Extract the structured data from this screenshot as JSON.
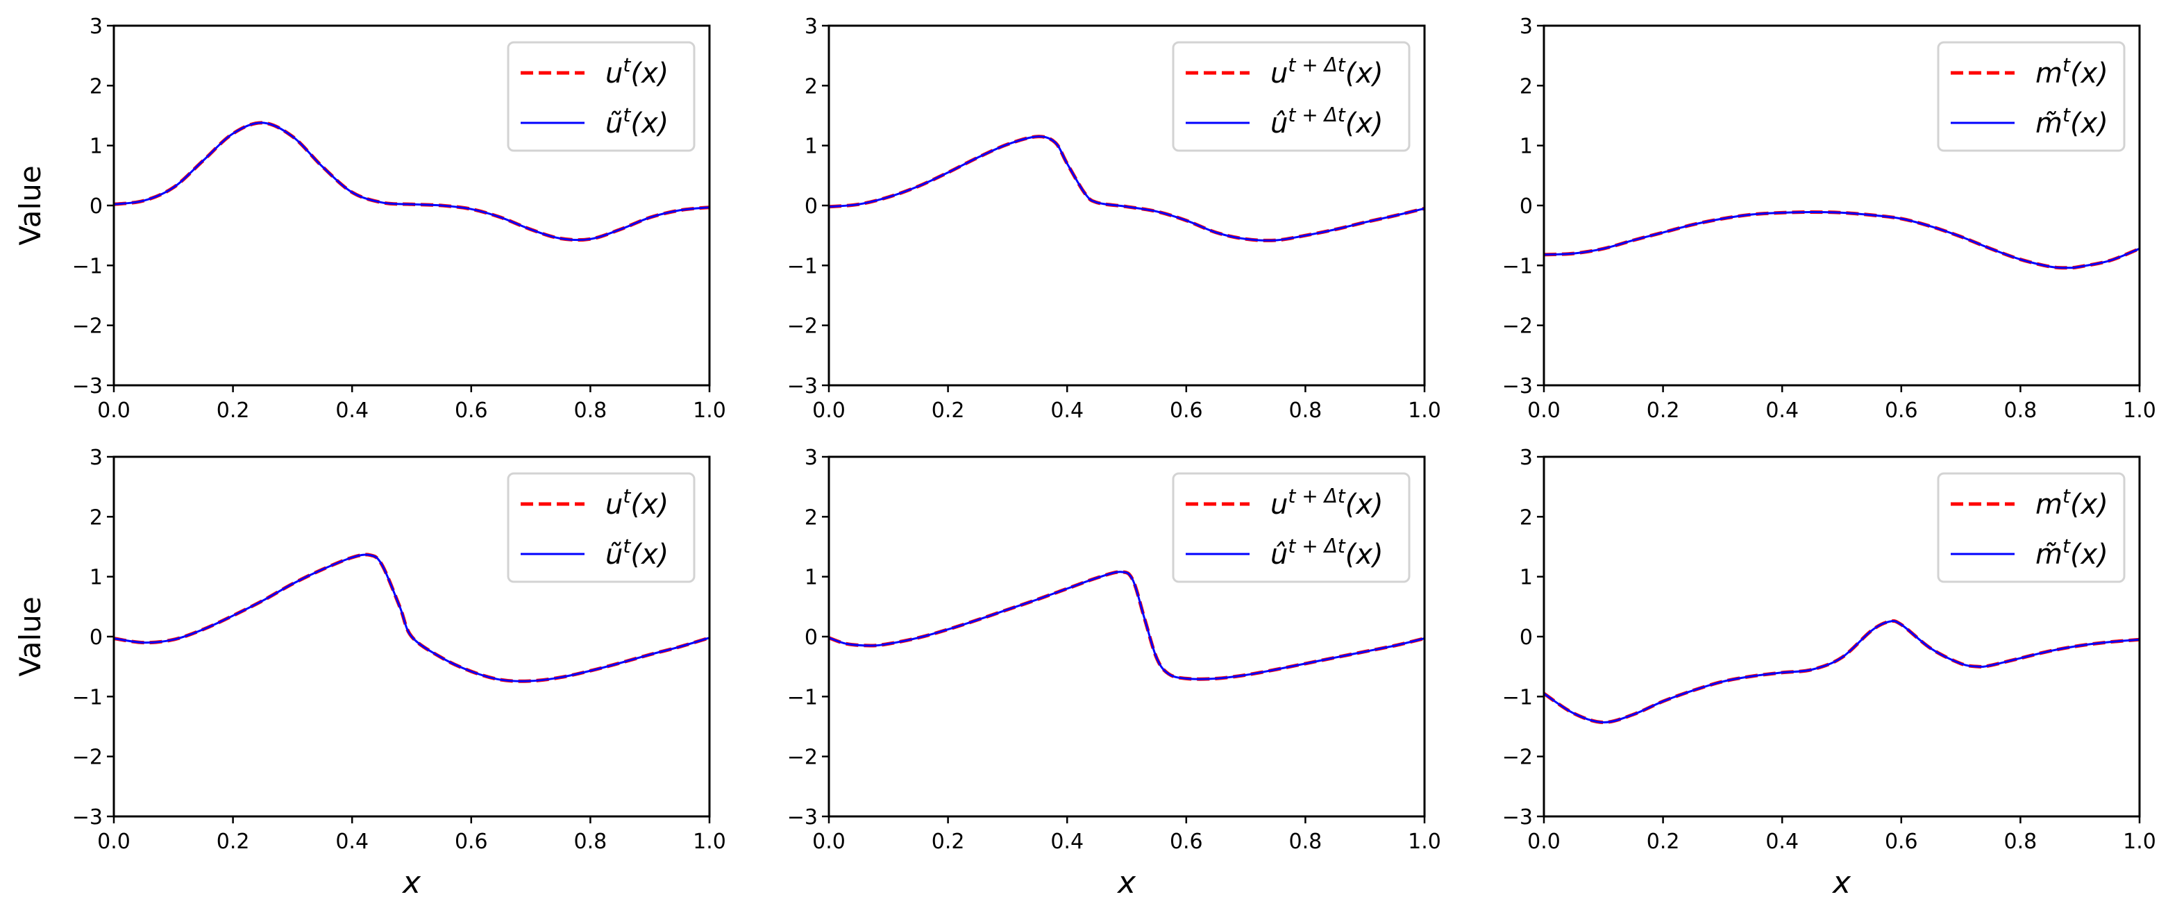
{
  "figure": {
    "layout": "2x3 grid of line plots",
    "ylabel": "Value",
    "xlabel": "x",
    "colors": {
      "reference": "#ff0000",
      "prediction": "#0000ff",
      "axis": "#000000",
      "legend_border": "#d3d3d3"
    }
  },
  "chart_data": [
    {
      "type": "line",
      "row": 0,
      "col": 0,
      "title": "",
      "xlabel": "",
      "ylabel": "Value",
      "xlim": [
        0.0,
        1.0
      ],
      "ylim": [
        -3,
        3
      ],
      "xticks": [
        "0.0",
        "0.2",
        "0.4",
        "0.6",
        "0.8",
        "1.0"
      ],
      "yticks": [
        "3",
        "2",
        "1",
        "0",
        "−1",
        "−2",
        "−3"
      ],
      "legend_position": "upper right",
      "x": [
        0.0,
        0.05,
        0.1,
        0.15,
        0.2,
        0.25,
        0.3,
        0.35,
        0.4,
        0.45,
        0.5,
        0.55,
        0.6,
        0.65,
        0.7,
        0.75,
        0.8,
        0.85,
        0.9,
        0.95,
        1.0
      ],
      "series": [
        {
          "name": "u^t(x)",
          "label_main": "u",
          "label_sup": "t",
          "accent": "",
          "style": "dashed",
          "color": "#ff0000",
          "values": [
            0.02,
            0.08,
            0.3,
            0.75,
            1.2,
            1.38,
            1.15,
            0.65,
            0.22,
            0.05,
            0.02,
            0.0,
            -0.06,
            -0.2,
            -0.4,
            -0.55,
            -0.56,
            -0.4,
            -0.2,
            -0.08,
            -0.03
          ]
        },
        {
          "name": "ũ^t(x)",
          "label_main": "u",
          "label_sup": "t",
          "accent": "tilde",
          "style": "solid",
          "color": "#0000ff",
          "values": [
            0.02,
            0.08,
            0.3,
            0.75,
            1.2,
            1.38,
            1.15,
            0.65,
            0.22,
            0.05,
            0.02,
            0.0,
            -0.06,
            -0.2,
            -0.4,
            -0.55,
            -0.56,
            -0.4,
            -0.2,
            -0.08,
            -0.03
          ]
        }
      ]
    },
    {
      "type": "line",
      "row": 0,
      "col": 1,
      "title": "",
      "xlabel": "",
      "ylabel": "",
      "xlim": [
        0.0,
        1.0
      ],
      "ylim": [
        -3,
        3
      ],
      "xticks": [
        "0.0",
        "0.2",
        "0.4",
        "0.6",
        "0.8",
        "1.0"
      ],
      "yticks": [
        "3",
        "2",
        "1",
        "0",
        "−1",
        "−2",
        "−3"
      ],
      "legend_position": "upper right",
      "x": [
        0.0,
        0.05,
        0.1,
        0.15,
        0.2,
        0.25,
        0.3,
        0.35,
        0.38,
        0.4,
        0.43,
        0.45,
        0.5,
        0.55,
        0.6,
        0.65,
        0.7,
        0.75,
        0.8,
        0.85,
        0.9,
        0.95,
        1.0
      ],
      "series": [
        {
          "name": "u^{t+Δt}(x)",
          "label_main": "u",
          "label_sup": "t + Δt",
          "accent": "",
          "style": "dashed",
          "color": "#ff0000",
          "values": [
            -0.02,
            0.02,
            0.14,
            0.32,
            0.55,
            0.8,
            1.02,
            1.15,
            1.05,
            0.7,
            0.2,
            0.05,
            -0.02,
            -0.1,
            -0.25,
            -0.45,
            -0.56,
            -0.58,
            -0.5,
            -0.4,
            -0.28,
            -0.17,
            -0.05
          ]
        },
        {
          "name": "û^{t+Δt}(x)",
          "label_main": "u",
          "label_sup": "t + Δt",
          "accent": "hat",
          "style": "solid",
          "color": "#0000ff",
          "values": [
            -0.02,
            0.02,
            0.14,
            0.32,
            0.55,
            0.8,
            1.02,
            1.15,
            1.05,
            0.7,
            0.2,
            0.05,
            -0.02,
            -0.1,
            -0.25,
            -0.45,
            -0.56,
            -0.58,
            -0.5,
            -0.4,
            -0.28,
            -0.17,
            -0.05
          ]
        }
      ]
    },
    {
      "type": "line",
      "row": 0,
      "col": 2,
      "title": "",
      "xlabel": "",
      "ylabel": "",
      "xlim": [
        0.0,
        1.0
      ],
      "ylim": [
        -3,
        3
      ],
      "xticks": [
        "0.0",
        "0.2",
        "0.4",
        "0.6",
        "0.8",
        "1.0"
      ],
      "yticks": [
        "3",
        "2",
        "1",
        "0",
        "−1",
        "−2",
        "−3"
      ],
      "legend_position": "upper right",
      "x": [
        0.0,
        0.05,
        0.1,
        0.15,
        0.2,
        0.25,
        0.3,
        0.35,
        0.4,
        0.45,
        0.5,
        0.55,
        0.6,
        0.65,
        0.7,
        0.75,
        0.8,
        0.85,
        0.88,
        0.9,
        0.95,
        1.0
      ],
      "series": [
        {
          "name": "m^t(x)",
          "label_main": "m",
          "label_sup": "t",
          "accent": "",
          "style": "dashed",
          "color": "#ff0000",
          "values": [
            -0.82,
            -0.8,
            -0.72,
            -0.58,
            -0.45,
            -0.32,
            -0.22,
            -0.15,
            -0.12,
            -0.11,
            -0.12,
            -0.16,
            -0.22,
            -0.35,
            -0.52,
            -0.72,
            -0.9,
            -1.02,
            -1.04,
            -1.02,
            -0.92,
            -0.72
          ]
        },
        {
          "name": "m̃^t(x)",
          "label_main": "m",
          "label_sup": "t",
          "accent": "tilde",
          "style": "solid",
          "color": "#0000ff",
          "values": [
            -0.82,
            -0.8,
            -0.72,
            -0.58,
            -0.45,
            -0.32,
            -0.22,
            -0.15,
            -0.12,
            -0.11,
            -0.12,
            -0.16,
            -0.22,
            -0.35,
            -0.52,
            -0.72,
            -0.9,
            -1.02,
            -1.04,
            -1.02,
            -0.92,
            -0.72
          ]
        }
      ]
    },
    {
      "type": "line",
      "row": 1,
      "col": 0,
      "title": "",
      "xlabel": "x",
      "ylabel": "Value",
      "xlim": [
        0.0,
        1.0
      ],
      "ylim": [
        -3,
        3
      ],
      "xticks": [
        "0.0",
        "0.2",
        "0.4",
        "0.6",
        "0.8",
        "1.0"
      ],
      "yticks": [
        "3",
        "2",
        "1",
        "0",
        "−1",
        "−2",
        "−3"
      ],
      "legend_position": "upper right",
      "x": [
        0.0,
        0.05,
        0.1,
        0.15,
        0.2,
        0.25,
        0.3,
        0.35,
        0.4,
        0.43,
        0.45,
        0.48,
        0.5,
        0.55,
        0.6,
        0.65,
        0.7,
        0.75,
        0.8,
        0.85,
        0.9,
        0.95,
        1.0
      ],
      "series": [
        {
          "name": "u^t(x)",
          "label_main": "u",
          "label_sup": "t",
          "accent": "",
          "style": "dashed",
          "color": "#ff0000",
          "values": [
            -0.03,
            -0.1,
            -0.05,
            0.12,
            0.35,
            0.6,
            0.88,
            1.12,
            1.32,
            1.36,
            1.2,
            0.5,
            0.0,
            -0.35,
            -0.58,
            -0.72,
            -0.74,
            -0.68,
            -0.57,
            -0.44,
            -0.3,
            -0.17,
            -0.02
          ]
        },
        {
          "name": "ũ^t(x)",
          "label_main": "u",
          "label_sup": "t",
          "accent": "tilde",
          "style": "solid",
          "color": "#0000ff",
          "values": [
            -0.03,
            -0.1,
            -0.05,
            0.12,
            0.35,
            0.6,
            0.88,
            1.12,
            1.32,
            1.36,
            1.2,
            0.5,
            0.0,
            -0.35,
            -0.58,
            -0.72,
            -0.74,
            -0.68,
            -0.57,
            -0.44,
            -0.3,
            -0.17,
            -0.02
          ]
        }
      ]
    },
    {
      "type": "line",
      "row": 1,
      "col": 1,
      "title": "",
      "xlabel": "x",
      "ylabel": "",
      "xlim": [
        0.0,
        1.0
      ],
      "ylim": [
        -3,
        3
      ],
      "xticks": [
        "0.0",
        "0.2",
        "0.4",
        "0.6",
        "0.8",
        "1.0"
      ],
      "yticks": [
        "3",
        "2",
        "1",
        "0",
        "−1",
        "−2",
        "−3"
      ],
      "legend_position": "upper right",
      "x": [
        0.0,
        0.03,
        0.07,
        0.1,
        0.15,
        0.2,
        0.25,
        0.3,
        0.35,
        0.4,
        0.45,
        0.49,
        0.51,
        0.53,
        0.55,
        0.57,
        0.6,
        0.65,
        0.7,
        0.75,
        0.8,
        0.85,
        0.9,
        0.95,
        1.0
      ],
      "series": [
        {
          "name": "u^{t+Δt}(x)",
          "label_main": "u",
          "label_sup": "t + Δt",
          "accent": "",
          "style": "dashed",
          "color": "#ff0000",
          "values": [
            -0.02,
            -0.12,
            -0.15,
            -0.12,
            -0.02,
            0.12,
            0.28,
            0.45,
            0.62,
            0.8,
            0.98,
            1.08,
            0.95,
            0.3,
            -0.35,
            -0.62,
            -0.7,
            -0.7,
            -0.64,
            -0.55,
            -0.45,
            -0.35,
            -0.25,
            -0.15,
            -0.03
          ]
        },
        {
          "name": "û^{t+Δt}(x)",
          "label_main": "u",
          "label_sup": "t + Δt",
          "accent": "hat",
          "style": "solid",
          "color": "#0000ff",
          "values": [
            -0.02,
            -0.12,
            -0.15,
            -0.12,
            -0.02,
            0.12,
            0.28,
            0.45,
            0.62,
            0.8,
            0.98,
            1.08,
            0.95,
            0.3,
            -0.35,
            -0.62,
            -0.7,
            -0.7,
            -0.64,
            -0.55,
            -0.45,
            -0.35,
            -0.25,
            -0.15,
            -0.03
          ]
        }
      ]
    },
    {
      "type": "line",
      "row": 1,
      "col": 2,
      "title": "",
      "xlabel": "x",
      "ylabel": "",
      "xlim": [
        0.0,
        1.0
      ],
      "ylim": [
        -3,
        3
      ],
      "xticks": [
        "0.0",
        "0.2",
        "0.4",
        "0.6",
        "0.8",
        "1.0"
      ],
      "yticks": [
        "3",
        "2",
        "1",
        "0",
        "−1",
        "−2",
        "−3"
      ],
      "legend_position": "upper right",
      "x": [
        0.0,
        0.05,
        0.1,
        0.15,
        0.2,
        0.25,
        0.3,
        0.35,
        0.4,
        0.45,
        0.5,
        0.55,
        0.58,
        0.6,
        0.65,
        0.7,
        0.73,
        0.75,
        0.8,
        0.85,
        0.9,
        0.95,
        1.0
      ],
      "series": [
        {
          "name": "m^t(x)",
          "label_main": "m",
          "label_sup": "t",
          "accent": "",
          "style": "dashed",
          "color": "#ff0000",
          "values": [
            -0.95,
            -1.28,
            -1.43,
            -1.3,
            -1.08,
            -0.9,
            -0.75,
            -0.66,
            -0.6,
            -0.55,
            -0.35,
            0.1,
            0.25,
            0.2,
            -0.2,
            -0.45,
            -0.5,
            -0.48,
            -0.36,
            -0.24,
            -0.15,
            -0.09,
            -0.05
          ]
        },
        {
          "name": "m̃^t(x)",
          "label_main": "m",
          "label_sup": "t",
          "accent": "tilde",
          "style": "solid",
          "color": "#0000ff",
          "values": [
            -0.95,
            -1.28,
            -1.43,
            -1.3,
            -1.08,
            -0.9,
            -0.75,
            -0.66,
            -0.6,
            -0.55,
            -0.35,
            0.1,
            0.25,
            0.2,
            -0.2,
            -0.45,
            -0.5,
            -0.48,
            -0.36,
            -0.24,
            -0.15,
            -0.09,
            -0.05
          ]
        }
      ]
    }
  ]
}
